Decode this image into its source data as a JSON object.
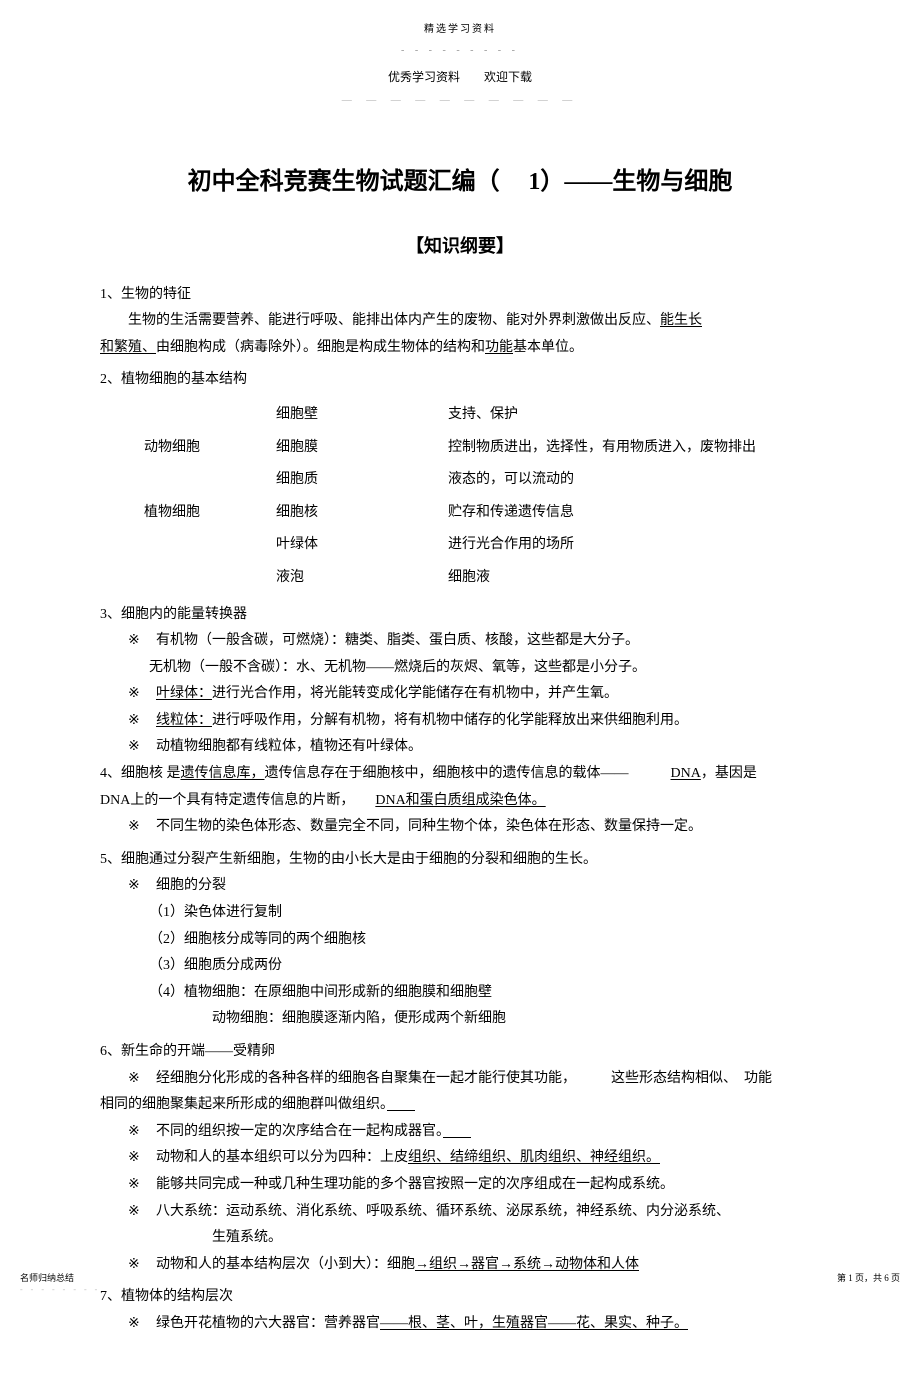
{
  "header": {
    "small": "精选学习资料",
    "small_dots": "- - - - - - - - -",
    "sub": "优秀学习资料　　欢迎下载",
    "sub_dash": "— — — — — — — — — —"
  },
  "title_prefix": "初中全科竞赛生物试题汇编（",
  "title_num": "1",
  "title_suffix": "）——生物与细胞",
  "subtitle": "【知识纲要】",
  "s1": {
    "head": "1、生物的特征",
    "body1_a": "生物的生活需要营养、能进行呼吸、能排出体内产生的废物、能对外界刺激做出反应、",
    "body1_b": "能生长",
    "body2_a": "和繁殖、",
    "body2_b": "由细胞构成（病毒除外）。细胞是构成生物体的结构和",
    "body2_c": "功能",
    "body2_d": "基本单位。"
  },
  "s2": {
    "head": "2、植物细胞的基本结构",
    "rows": [
      {
        "a": "",
        "b": "细胞壁",
        "c": "支持、保护"
      },
      {
        "a": "动物细胞",
        "b": "细胞膜",
        "c": "控制物质进出，选择性，有用物质进入，废物排出"
      },
      {
        "a": "",
        "b": "细胞质",
        "c": "液态的，可以流动的"
      },
      {
        "a": "植物细胞",
        "b": "细胞核",
        "c": "贮存和传递遗传信息"
      },
      {
        "a": "",
        "b": "叶绿体",
        "c": "进行光合作用的场所"
      },
      {
        "a": "",
        "b": "液泡",
        "c": "细胞液"
      }
    ]
  },
  "s3": {
    "head": "3、细胞内的能量转换器",
    "i1": "有机物（一般含碳，可燃烧）：糖类、脂类、蛋白质、核酸，这些都是大分子。",
    "i1b": "无机物（一般不含碳）：水、无机物——燃烧后的灰烬、氧等，这些都是小分子。",
    "i2a": "叶绿体：",
    "i2b": "进行光合作用，将光能转变成化学能储存在有机物中，并产生氧。",
    "i3a": "线粒体：",
    "i3b": "进行呼吸作用，分解有机物，将有机物中储存的化学能释放出来供细胞利用。",
    "i4": "动植物细胞都有线粒体，植物还有叶绿体。"
  },
  "s4": {
    "line1_a": "4、细胞核  是",
    "line1_b": "遗传信息库，",
    "line1_c": "遗传信息存在于细胞核中，细胞核中的遗传信息的载体——",
    "line1_d": "DNA",
    "line1_e": "，基因是",
    "line2_a": "DNA",
    "line2_b": "上的一个具有特定遗传信息的片断，",
    "line2_c": "DNA和蛋白质组成染色体。",
    "i1": "不同生物的染色体形态、数量完全不同，同种生物个体，染色体在形态、数量保持一定。"
  },
  "s5": {
    "head": "5、细胞通过分裂产生新细胞，生物的由小长大是由于细胞的分裂和细胞的生长。",
    "sub": "细胞的分裂",
    "p1": "（1）染色体进行复制",
    "p2": "（2）细胞核分成等同的两个细胞核",
    "p3": "（3）细胞质分成两份",
    "p4": "（4）植物细胞：在原细胞中间形成新的细胞膜和细胞壁",
    "p4b": "动物细胞：细胞膜逐渐内陷，便形成两个新细胞"
  },
  "s6": {
    "head": "6、新生命的开端——受精卵",
    "i1_a": "经细胞分化形成的各种各样的细胞各自聚集在一起才能行使其功能，",
    "i1_b": "这些形态结构相似、",
    "i1_c": "功能",
    "i1d": "相同的细胞聚集起来所形成的细胞群叫做组织。",
    "i2": "不同的组织按一定的次序结合在一起构成器官。",
    "i3_a": "动物和人的基本组织可以分为四种：上皮",
    "i3_b": "组织、结缔组织、肌肉组织、神经组织。",
    "i4": "能够共同完成一种或几种生理功能的多个器官按照一定的次序组成在一起构成系统。",
    "i5": "八大系统：运动系统、消化系统、呼吸系统、循环系统、泌尿系统，神经系统、内分泌系统、",
    "i5b": "生殖系统。",
    "i6_a": "动物和人的基本结构层次（小到大）：细胞",
    "i6_b": "→组织→器官→系统→动物体和人体"
  },
  "s7": {
    "head": "7、植物体的结构层次",
    "i1_a": "绿色开花植物的六大器官：营养器官",
    "i1_b": "——根、茎、叶，生殖器官——花、果实、种子。"
  },
  "footer": {
    "left1": "名师归纳总结",
    "left_dots": "- - - - - - - -",
    "right": "第 1 页，共 6 页"
  }
}
